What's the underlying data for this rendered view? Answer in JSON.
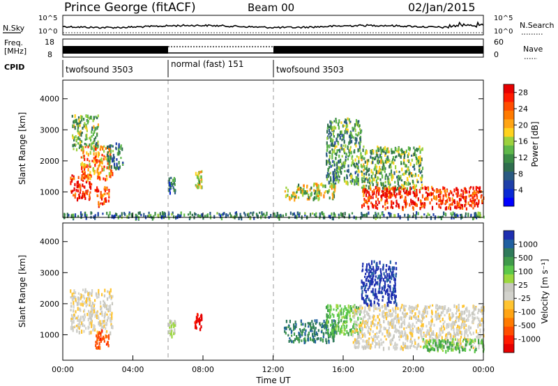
{
  "header": {
    "station": "Prince George (fitACF)",
    "beam": "Beam 00",
    "date": "02/Jan/2015"
  },
  "noise_panel": {
    "left_label": "N.Sky",
    "right_label": "N.Search",
    "left_ticks": [
      "10^5",
      "10^0"
    ],
    "right_ticks": [
      "10^5",
      "10^0"
    ]
  },
  "freq_panel": {
    "left_label_1": "Freq.",
    "left_label_2": "[MHz]",
    "right_label": "Nave",
    "left_ticks": [
      "18",
      "8"
    ],
    "right_ticks": [
      "60",
      "0"
    ]
  },
  "cpid": {
    "label": "CPID",
    "segments": [
      {
        "name": "twofsound 3503",
        "start_hour": 0,
        "end_hour": 6
      },
      {
        "name": "normal (fast) 151",
        "start_hour": 6,
        "end_hour": 12
      },
      {
        "name": "twofsound 3503",
        "start_hour": 12,
        "end_hour": 24
      }
    ]
  },
  "colors": {
    "power_scale": [
      "#0000ff",
      "#0a2ad4",
      "#1e3fa8",
      "#2a5a82",
      "#2f6e4e",
      "#3c8c46",
      "#5fb84a",
      "#9cd13e",
      "#ffd21e",
      "#ffa414",
      "#ff7a00",
      "#ff4d00",
      "#ff1a00",
      "#e60000"
    ],
    "velocity_scale": [
      "#1e2fb0",
      "#1f5fa0",
      "#2f7a5a",
      "#3f9a4a",
      "#5cc84a",
      "#9cd83e",
      "#c8c8c0",
      "#d2d2cc",
      "#ffc430",
      "#ffa414",
      "#ff7a00",
      "#ff4d00",
      "#ff1a00",
      "#e60000"
    ]
  },
  "chart_data": [
    {
      "type": "heatmap",
      "ylabel": "Slant Range [km]",
      "ylim": [
        180,
        4600
      ],
      "yticks": [
        "1000",
        "2000",
        "3000",
        "4000"
      ],
      "ytick_values": [
        1000,
        2000,
        3000,
        4000
      ],
      "xlim": [
        0,
        24
      ],
      "colorbar": {
        "label": "Power [dB]",
        "ticks": [
          "4",
          "8",
          "12",
          "16",
          "20",
          "24",
          "28"
        ],
        "tick_values": [
          4,
          8,
          12,
          16,
          20,
          24,
          28
        ],
        "range": [
          0,
          30
        ]
      },
      "echo_regions": [
        {
          "t0": 0.4,
          "t1": 1.6,
          "r0": 800,
          "r1": 1600,
          "level": 27
        },
        {
          "t0": 1.0,
          "t1": 2.8,
          "r0": 1400,
          "r1": 2500,
          "level": 22
        },
        {
          "t0": 1.8,
          "t1": 2.6,
          "r0": 600,
          "r1": 1200,
          "level": 24
        },
        {
          "t0": 0.5,
          "t1": 2.0,
          "r0": 2400,
          "r1": 3500,
          "level": 14
        },
        {
          "t0": 2.5,
          "t1": 3.4,
          "r0": 1800,
          "r1": 2600,
          "level": 10
        },
        {
          "t0": 6.0,
          "t1": 6.4,
          "r0": 1000,
          "r1": 1500,
          "level": 8
        },
        {
          "t0": 7.5,
          "t1": 7.9,
          "r0": 1200,
          "r1": 1700,
          "level": 18
        },
        {
          "t0": 12.6,
          "t1": 15.5,
          "r0": 800,
          "r1": 1300,
          "level": 16
        },
        {
          "t0": 15.0,
          "t1": 17.0,
          "r0": 1300,
          "r1": 3400,
          "level": 12
        },
        {
          "t0": 17.0,
          "t1": 20.5,
          "r0": 1100,
          "r1": 2500,
          "level": 14
        },
        {
          "t0": 17.0,
          "t1": 24.0,
          "r0": 500,
          "r1": 1200,
          "level": 27
        },
        {
          "t0": 0.0,
          "t1": 24.0,
          "r0": 200,
          "r1": 380,
          "level": 10
        }
      ]
    },
    {
      "type": "heatmap",
      "ylabel": "Slant Range [km]",
      "xlabel": "Time UT",
      "ylim": [
        180,
        4600
      ],
      "yticks": [
        "1000",
        "2000",
        "3000",
        "4000"
      ],
      "ytick_values": [
        1000,
        2000,
        3000,
        4000
      ],
      "xlim": [
        0,
        24
      ],
      "xticks": [
        "00:00",
        "04:00",
        "08:00",
        "12:00",
        "16:00",
        "20:00",
        "00:00"
      ],
      "xtick_values": [
        0,
        4,
        8,
        12,
        16,
        20,
        24
      ],
      "colorbar": {
        "label": "Velocity [m s⁻¹]",
        "ticks": [
          "1000",
          "500",
          "100",
          "25",
          "-25",
          "-100",
          "-500",
          "-1000"
        ],
        "tick_values": [
          1000,
          500,
          100,
          25,
          -25,
          -100,
          -500,
          -1000
        ]
      },
      "echo_regions": [
        {
          "t0": 0.4,
          "t1": 2.8,
          "r0": 1100,
          "r1": 2500,
          "level": "-25"
        },
        {
          "t0": 1.8,
          "t1": 2.6,
          "r0": 600,
          "r1": 1200,
          "level": "-500"
        },
        {
          "t0": 6.0,
          "t1": 6.4,
          "r0": 1000,
          "r1": 1500,
          "level": "25"
        },
        {
          "t0": 7.5,
          "t1": 7.9,
          "r0": 1200,
          "r1": 1700,
          "level": "-1000"
        },
        {
          "t0": 12.6,
          "t1": 15.5,
          "r0": 800,
          "r1": 1500,
          "level": "500"
        },
        {
          "t0": 15.0,
          "t1": 17.0,
          "r0": 1000,
          "r1": 2000,
          "level": "100"
        },
        {
          "t0": 16.5,
          "t1": 24.0,
          "r0": 600,
          "r1": 2000,
          "level": "-25"
        },
        {
          "t0": 17.0,
          "t1": 19.0,
          "r0": 2000,
          "r1": 3400,
          "level": "1000"
        },
        {
          "t0": 20.5,
          "t1": 24.0,
          "r0": 500,
          "r1": 900,
          "level": "100"
        }
      ]
    }
  ]
}
